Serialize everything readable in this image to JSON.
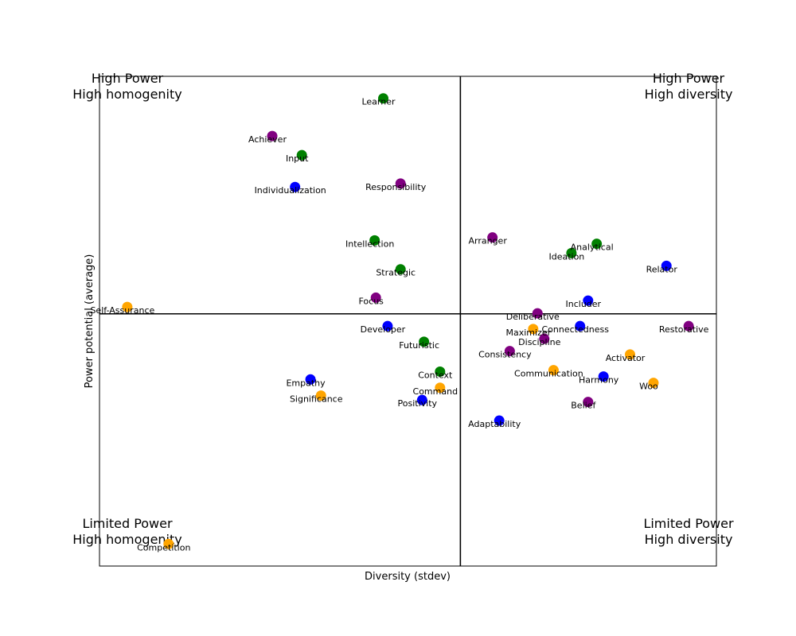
{
  "chart_data": {
    "type": "scatter",
    "title": "",
    "xlabel": "Diversity (stdev)",
    "ylabel": "Power potential (average)",
    "xlim": [
      0,
      1000
    ],
    "ylim": [
      0,
      1000
    ],
    "divider": {
      "x": 585,
      "y": 515
    },
    "grid": false,
    "legend": "none",
    "quadrants": [
      {
        "position": "top-left",
        "lines": [
          "High Power",
          "High homogenity"
        ]
      },
      {
        "position": "top-right",
        "lines": [
          "High Power",
          "High diversity"
        ]
      },
      {
        "position": "bottom-left",
        "lines": [
          "Limited Power",
          "High homogenity"
        ]
      },
      {
        "position": "bottom-right",
        "lines": [
          "Limited Power",
          "High diversity"
        ]
      }
    ],
    "colors": {
      "green": "#008000",
      "purple": "#800080",
      "blue": "#0000ff",
      "orange": "#ffa500"
    },
    "points": [
      {
        "label": "Learner",
        "x": 460,
        "y": 955,
        "color": "green"
      },
      {
        "label": "Achiever",
        "x": 280,
        "y": 878,
        "color": "purple"
      },
      {
        "label": "Input",
        "x": 328,
        "y": 839,
        "color": "green"
      },
      {
        "label": "Individualization",
        "x": 317,
        "y": 774,
        "color": "blue"
      },
      {
        "label": "Responsibility",
        "x": 488,
        "y": 781,
        "color": "purple"
      },
      {
        "label": "Intellection",
        "x": 446,
        "y": 665,
        "color": "green"
      },
      {
        "label": "Strategic",
        "x": 488,
        "y": 606,
        "color": "green"
      },
      {
        "label": "Focus",
        "x": 448,
        "y": 548,
        "color": "purple"
      },
      {
        "label": "Self-Assurance",
        "x": 45,
        "y": 529,
        "color": "orange"
      },
      {
        "label": "Developer",
        "x": 467,
        "y": 490,
        "color": "blue"
      },
      {
        "label": "Futuristic",
        "x": 526,
        "y": 458,
        "color": "green"
      },
      {
        "label": "Empathy",
        "x": 342,
        "y": 381,
        "color": "blue"
      },
      {
        "label": "Significance",
        "x": 359,
        "y": 348,
        "color": "orange"
      },
      {
        "label": "Context",
        "x": 552,
        "y": 397,
        "color": "green"
      },
      {
        "label": "Command",
        "x": 552,
        "y": 364,
        "color": "orange"
      },
      {
        "label": "Positivity",
        "x": 523,
        "y": 339,
        "color": "blue"
      },
      {
        "label": "Competition",
        "x": 112,
        "y": 45,
        "color": "orange"
      },
      {
        "label": "Arranger",
        "x": 637,
        "y": 671,
        "color": "purple"
      },
      {
        "label": "Analytical",
        "x": 806,
        "y": 658,
        "color": "green"
      },
      {
        "label": "Ideation",
        "x": 765,
        "y": 639,
        "color": "green"
      },
      {
        "label": "Relator",
        "x": 919,
        "y": 613,
        "color": "blue"
      },
      {
        "label": "Includer",
        "x": 792,
        "y": 542,
        "color": "blue"
      },
      {
        "label": "Deliberative",
        "x": 710,
        "y": 516,
        "color": "purple"
      },
      {
        "label": "Maximizer",
        "x": 703,
        "y": 484,
        "color": "orange"
      },
      {
        "label": "Connectedness",
        "x": 779,
        "y": 490,
        "color": "blue"
      },
      {
        "label": "Restorative",
        "x": 955,
        "y": 490,
        "color": "purple"
      },
      {
        "label": "Discipline",
        "x": 721,
        "y": 464,
        "color": "purple"
      },
      {
        "label": "Consistency",
        "x": 665,
        "y": 439,
        "color": "purple"
      },
      {
        "label": "Activator",
        "x": 860,
        "y": 432,
        "color": "orange"
      },
      {
        "label": "Communication",
        "x": 736,
        "y": 400,
        "color": "orange"
      },
      {
        "label": "Harmony",
        "x": 817,
        "y": 387,
        "color": "blue"
      },
      {
        "label": "Woo",
        "x": 898,
        "y": 374,
        "color": "orange"
      },
      {
        "label": "Belief",
        "x": 792,
        "y": 335,
        "color": "purple"
      },
      {
        "label": "Adaptability",
        "x": 648,
        "y": 297,
        "color": "blue"
      }
    ]
  }
}
